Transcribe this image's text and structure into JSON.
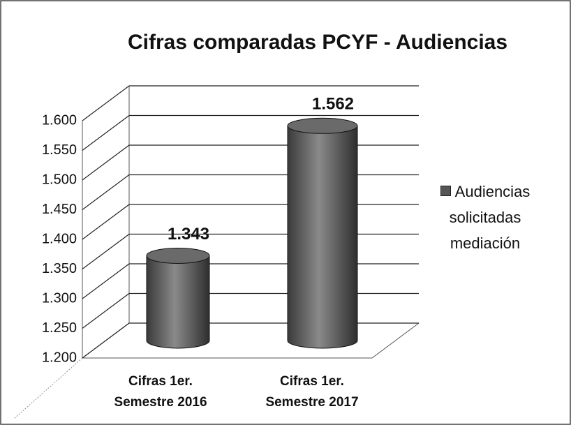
{
  "chart_data": {
    "type": "bar",
    "title": "Cifras comparadas PCYF - Audiencias",
    "categories": [
      "Cifras 1er. Semestre 2016",
      "Cifras 1er. Semestre 2017"
    ],
    "series": [
      {
        "name": "Audiencias solicitadas mediación",
        "color": "#555555",
        "values": [
          1343,
          1562
        ],
        "value_labels": [
          "1.343",
          "1.562"
        ]
      }
    ],
    "ylim": [
      1200,
      1600
    ],
    "yticks": [
      {
        "value": 1200,
        "label": "1.200"
      },
      {
        "value": 1250,
        "label": "1.250"
      },
      {
        "value": 1300,
        "label": "1.300"
      },
      {
        "value": 1350,
        "label": "1.350"
      },
      {
        "value": 1400,
        "label": "1.400"
      },
      {
        "value": 1450,
        "label": "1.450"
      },
      {
        "value": 1500,
        "label": "1.500"
      },
      {
        "value": 1550,
        "label": "1.550"
      },
      {
        "value": 1600,
        "label": "1.600"
      }
    ],
    "grid": true,
    "legend": "right"
  }
}
